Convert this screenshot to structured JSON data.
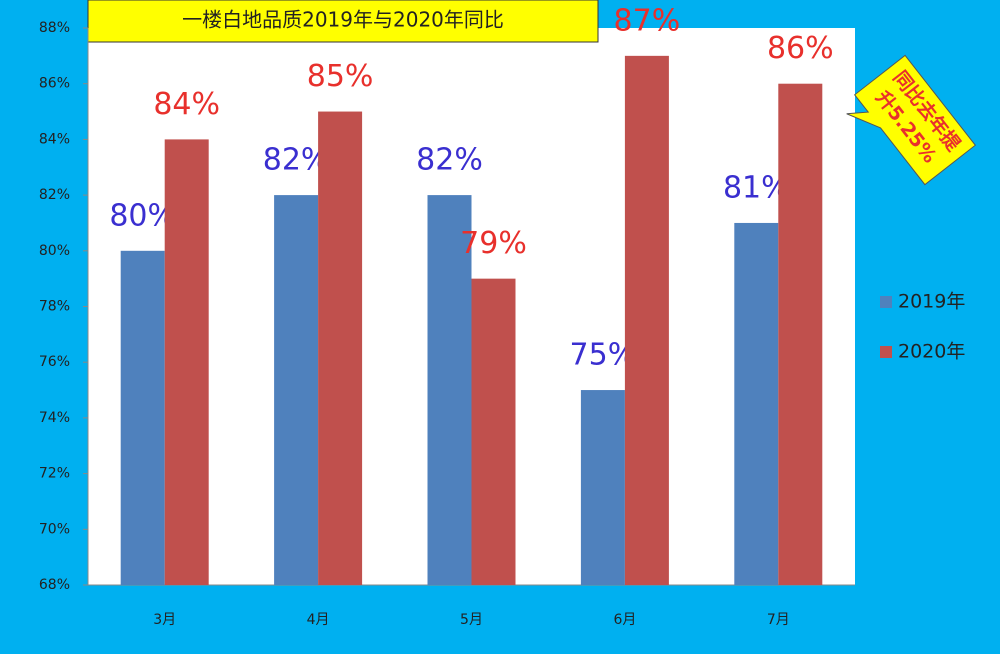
{
  "chart_data": {
    "type": "bar",
    "title": "一楼白地品质2019年与2020年同比",
    "annotation": [
      "同比去年提",
      "升5.25%"
    ],
    "categories": [
      "3月",
      "4月",
      "5月",
      "6月",
      "7月"
    ],
    "series": [
      {
        "name": "2019年",
        "color": "#4f81bd",
        "label_color": "#3a2fd0",
        "values": [
          80,
          82,
          82,
          75,
          81
        ],
        "value_labels": [
          "80%",
          "82%",
          "82%",
          "75%",
          "81%"
        ]
      },
      {
        "name": "2020年",
        "color": "#c0504d",
        "label_color": "#e8302c",
        "values": [
          84,
          85,
          79,
          87,
          86
        ],
        "value_labels": [
          "84%",
          "85%",
          "79%",
          "87%",
          "86%"
        ]
      }
    ],
    "ylim": [
      68,
      88
    ],
    "yticks": [
      {
        "value": 68,
        "label": "68%"
      },
      {
        "value": 70,
        "label": "70%"
      },
      {
        "value": 72,
        "label": "72%"
      },
      {
        "value": 74,
        "label": "74%"
      },
      {
        "value": 76,
        "label": "76%"
      },
      {
        "value": 78,
        "label": "78%"
      },
      {
        "value": 80,
        "label": "80%"
      },
      {
        "value": 82,
        "label": "82%"
      },
      {
        "value": 84,
        "label": "84%"
      },
      {
        "value": 86,
        "label": "86%"
      },
      {
        "value": 88,
        "label": "88%"
      }
    ],
    "grid": false,
    "legend": "right"
  }
}
